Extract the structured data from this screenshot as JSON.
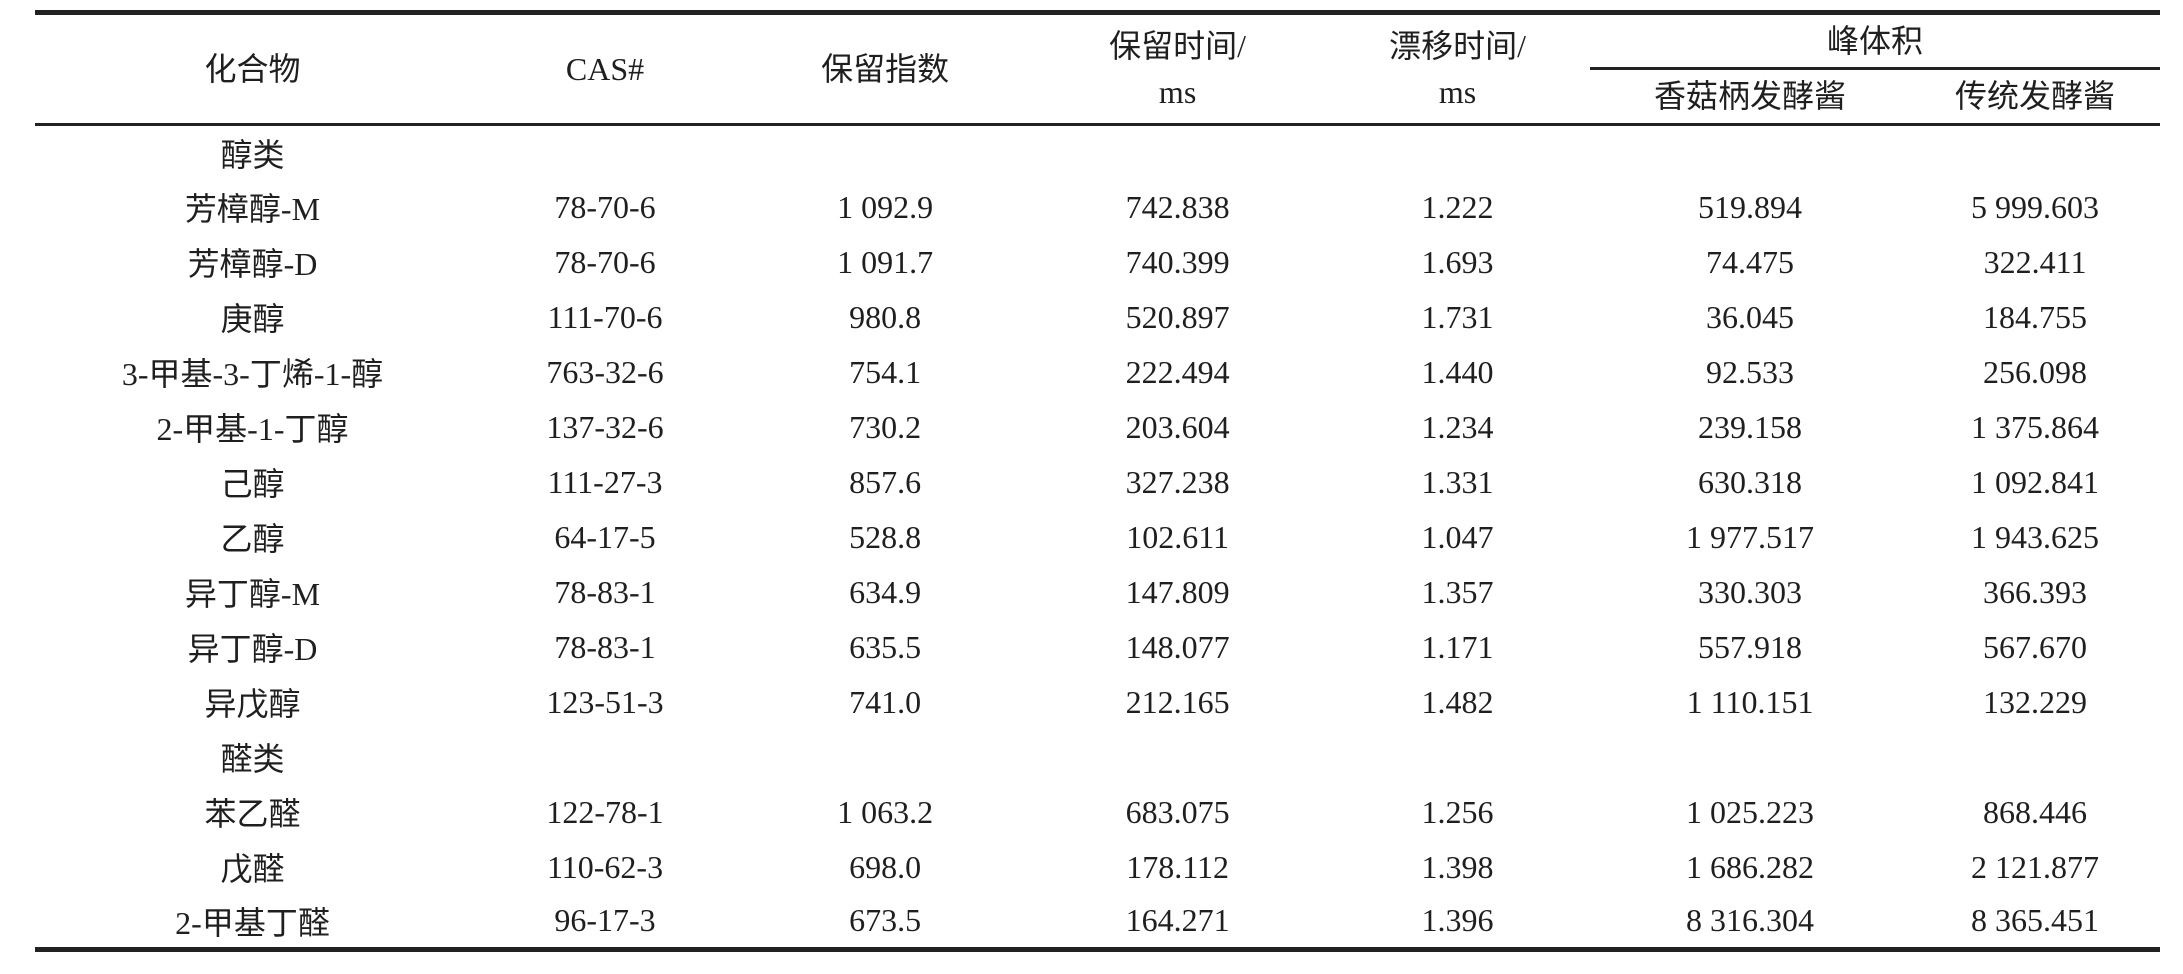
{
  "colors": {
    "background": "#ffffff",
    "text": "#1f1f1f",
    "rule": "#222222"
  },
  "table": {
    "columns": {
      "compound": "化合物",
      "cas": "CAS#",
      "retention_index": "保留指数",
      "retention_time_line1": "保留时间/",
      "retention_time_line2": "ms",
      "drift_time_line1": "漂移时间/",
      "drift_time_line2": "ms",
      "peak_volume_group": "峰体积",
      "peak_volume_sub1": "香菇柄发酵酱",
      "peak_volume_sub2": "传统发酵酱"
    },
    "rows": [
      {
        "type": "category",
        "compound": "醇类",
        "cas": "",
        "retention_index": "",
        "retention_time": "",
        "drift_time": "",
        "peak_volume_mushroom": "",
        "peak_volume_traditional": ""
      },
      {
        "type": "data",
        "compound": "芳樟醇-M",
        "cas": "78-70-6",
        "retention_index": "1 092.9",
        "retention_time": "742.838",
        "drift_time": "1.222",
        "peak_volume_mushroom": "519.894",
        "peak_volume_traditional": "5 999.603"
      },
      {
        "type": "data",
        "compound": "芳樟醇-D",
        "cas": "78-70-6",
        "retention_index": "1 091.7",
        "retention_time": "740.399",
        "drift_time": "1.693",
        "peak_volume_mushroom": "74.475",
        "peak_volume_traditional": "322.411"
      },
      {
        "type": "data",
        "compound": "庚醇",
        "cas": "111-70-6",
        "retention_index": "980.8",
        "retention_time": "520.897",
        "drift_time": "1.731",
        "peak_volume_mushroom": "36.045",
        "peak_volume_traditional": "184.755"
      },
      {
        "type": "data",
        "compound": "3-甲基-3-丁烯-1-醇",
        "cas": "763-32-6",
        "retention_index": "754.1",
        "retention_time": "222.494",
        "drift_time": "1.440",
        "peak_volume_mushroom": "92.533",
        "peak_volume_traditional": "256.098"
      },
      {
        "type": "data",
        "compound": "2-甲基-1-丁醇",
        "cas": "137-32-6",
        "retention_index": "730.2",
        "retention_time": "203.604",
        "drift_time": "1.234",
        "peak_volume_mushroom": "239.158",
        "peak_volume_traditional": "1 375.864"
      },
      {
        "type": "data",
        "compound": "己醇",
        "cas": "111-27-3",
        "retention_index": "857.6",
        "retention_time": "327.238",
        "drift_time": "1.331",
        "peak_volume_mushroom": "630.318",
        "peak_volume_traditional": "1 092.841"
      },
      {
        "type": "data",
        "compound": "乙醇",
        "cas": "64-17-5",
        "retention_index": "528.8",
        "retention_time": "102.611",
        "drift_time": "1.047",
        "peak_volume_mushroom": "1 977.517",
        "peak_volume_traditional": "1 943.625"
      },
      {
        "type": "data",
        "compound": "异丁醇-M",
        "cas": "78-83-1",
        "retention_index": "634.9",
        "retention_time": "147.809",
        "drift_time": "1.357",
        "peak_volume_mushroom": "330.303",
        "peak_volume_traditional": "366.393"
      },
      {
        "type": "data",
        "compound": "异丁醇-D",
        "cas": "78-83-1",
        "retention_index": "635.5",
        "retention_time": "148.077",
        "drift_time": "1.171",
        "peak_volume_mushroom": "557.918",
        "peak_volume_traditional": "567.670"
      },
      {
        "type": "data",
        "compound": "异戊醇",
        "cas": "123-51-3",
        "retention_index": "741.0",
        "retention_time": "212.165",
        "drift_time": "1.482",
        "peak_volume_mushroom": "1 110.151",
        "peak_volume_traditional": "132.229"
      },
      {
        "type": "category",
        "compound": "醛类",
        "cas": "",
        "retention_index": "",
        "retention_time": "",
        "drift_time": "",
        "peak_volume_mushroom": "",
        "peak_volume_traditional": ""
      },
      {
        "type": "data",
        "compound": "苯乙醛",
        "cas": "122-78-1",
        "retention_index": "1 063.2",
        "retention_time": "683.075",
        "drift_time": "1.256",
        "peak_volume_mushroom": "1 025.223",
        "peak_volume_traditional": "868.446"
      },
      {
        "type": "data",
        "compound": "戊醛",
        "cas": "110-62-3",
        "retention_index": "698.0",
        "retention_time": "178.112",
        "drift_time": "1.398",
        "peak_volume_mushroom": "1 686.282",
        "peak_volume_traditional": "2 121.877"
      },
      {
        "type": "data",
        "compound": "2-甲基丁醛",
        "cas": "96-17-3",
        "retention_index": "673.5",
        "retention_time": "164.271",
        "drift_time": "1.396",
        "peak_volume_mushroom": "8 316.304",
        "peak_volume_traditional": "8 365.451"
      }
    ]
  }
}
